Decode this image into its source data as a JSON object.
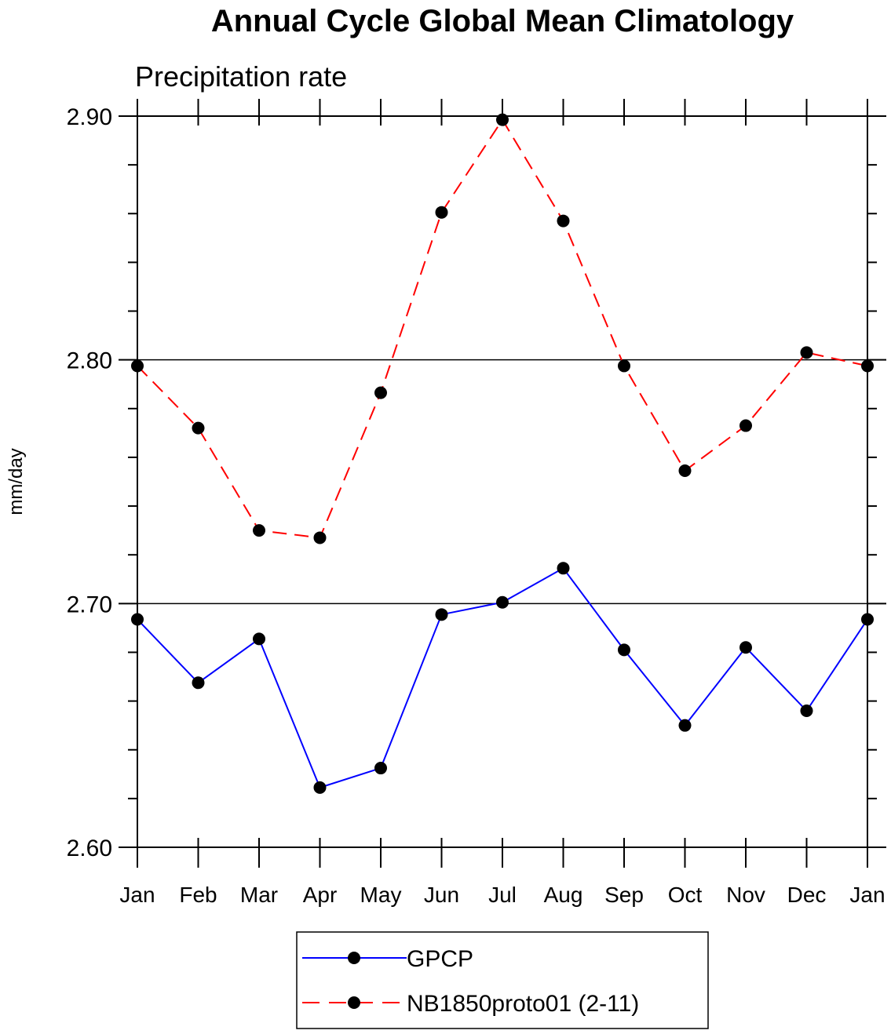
{
  "chart_data": {
    "type": "line",
    "title": "Annual Cycle Global Mean Climatology",
    "subtitle": "Precipitation rate",
    "xlabel": "",
    "ylabel": "mm/day",
    "ylim": [
      2.6,
      2.9
    ],
    "yticks": [
      "2.60",
      "2.70",
      "2.80",
      "2.90"
    ],
    "categories": [
      "Jan",
      "Feb",
      "Mar",
      "Apr",
      "May",
      "Jun",
      "Jul",
      "Aug",
      "Sep",
      "Oct",
      "Nov",
      "Dec",
      "Jan"
    ],
    "series": [
      {
        "name": "GPCP",
        "color": "#0000ff",
        "dash": "solid",
        "marker": "filled-circle",
        "values": [
          2.6935,
          2.6675,
          2.6855,
          2.6245,
          2.6325,
          2.6955,
          2.7005,
          2.7145,
          2.681,
          2.65,
          2.682,
          2.656,
          2.6935
        ]
      },
      {
        "name": "NB1850proto01 (2-11)",
        "color": "#ff0000",
        "dash": "dashed",
        "marker": "filled-circle",
        "values": [
          2.7975,
          2.772,
          2.73,
          2.727,
          2.7865,
          2.8605,
          2.8985,
          2.857,
          2.7975,
          2.7545,
          2.773,
          2.803,
          2.7975
        ]
      }
    ],
    "legend_position": "bottom-center"
  }
}
